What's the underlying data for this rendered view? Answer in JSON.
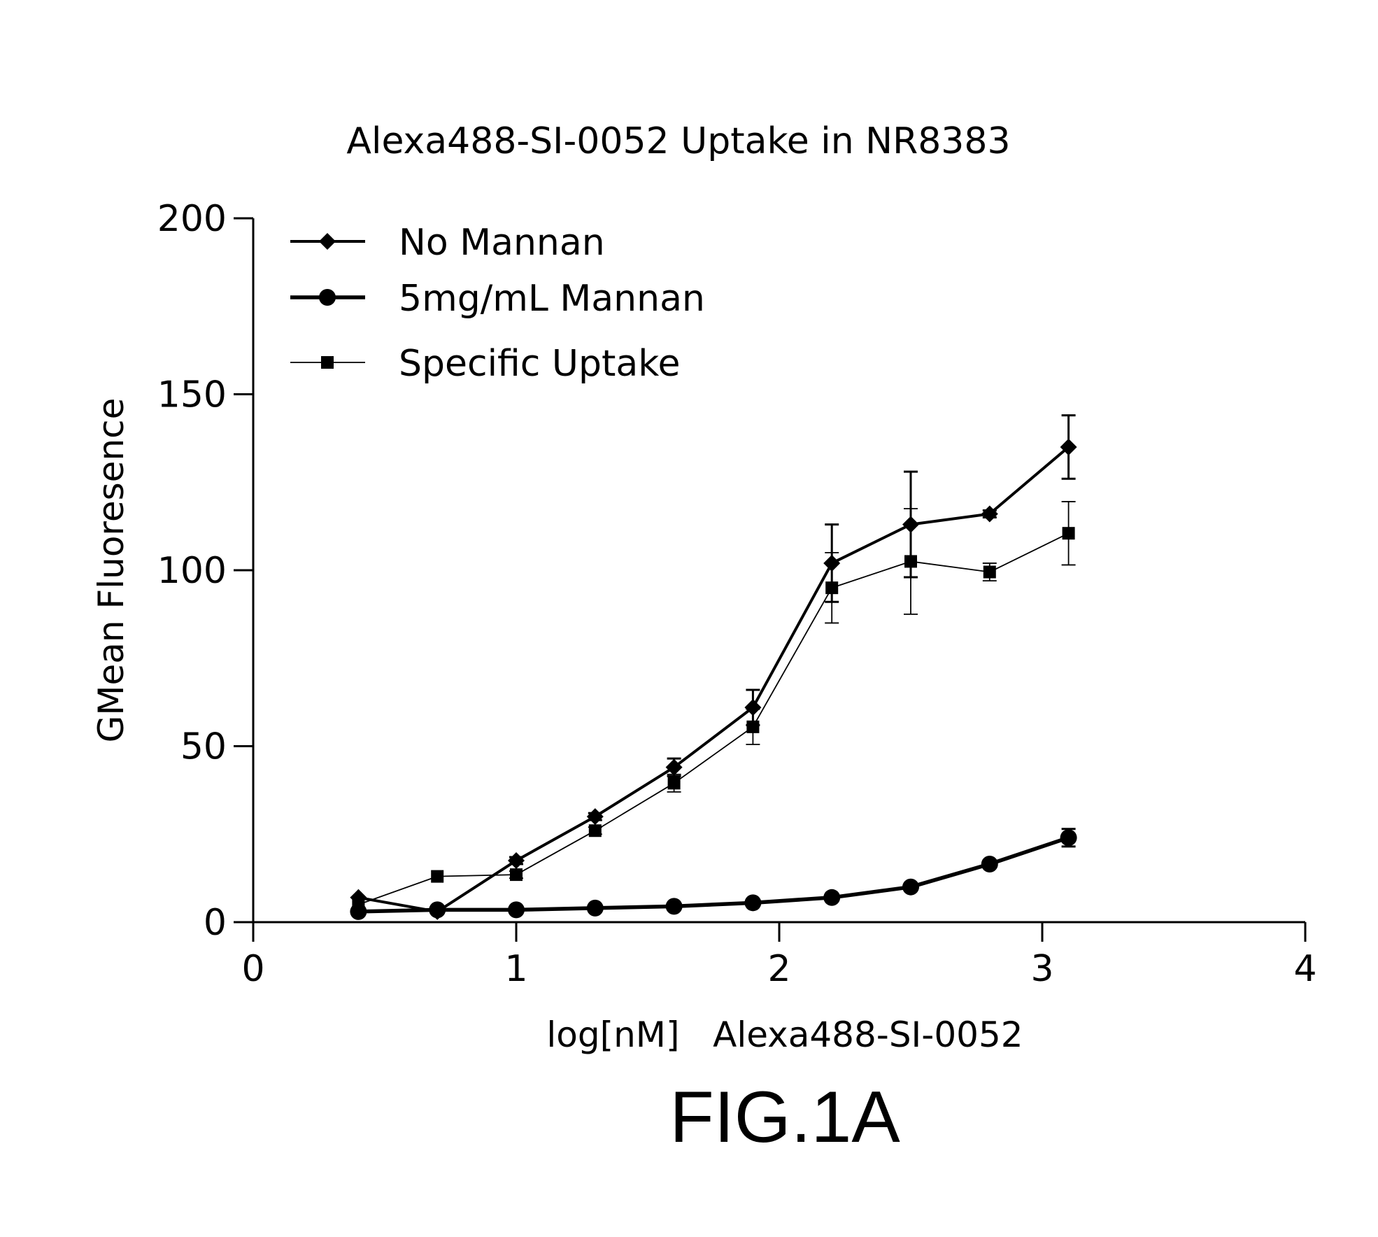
{
  "chart_data": {
    "type": "line",
    "title": "Alexa488-SI-0052 Uptake in NR8383",
    "xlabel": "log[nM]   Alexa488-SI-0052",
    "ylabel": "GMean Fluoresence",
    "xlim": [
      0,
      4
    ],
    "ylim": [
      0,
      200
    ],
    "xticks": [
      "0",
      "1",
      "2",
      "3",
      "4"
    ],
    "yticks": [
      "0",
      "50",
      "100",
      "150",
      "200"
    ],
    "grid": false,
    "legend_position": "top-left",
    "series": [
      {
        "name": "No Mannan",
        "marker": "diamond",
        "line": "thick",
        "x": [
          0.4,
          0.7,
          1.0,
          1.3,
          1.6,
          1.9,
          2.2,
          2.5,
          2.8,
          3.1
        ],
        "y": [
          7,
          3,
          17.5,
          30,
          44,
          61,
          102,
          113,
          116,
          135
        ],
        "err": [
          0,
          0,
          1,
          1,
          2.5,
          5,
          11,
          15,
          1,
          9
        ]
      },
      {
        "name": "5mg/mL Mannan",
        "marker": "circle",
        "line": "thickest",
        "x": [
          0.4,
          0.7,
          1.0,
          1.3,
          1.6,
          1.9,
          2.2,
          2.5,
          2.8,
          3.1
        ],
        "y": [
          3,
          3.5,
          3.5,
          4,
          4.5,
          5.5,
          7,
          10,
          16.5,
          24
        ],
        "err": [
          0,
          0,
          0.5,
          0.5,
          0.5,
          0.5,
          0.5,
          1,
          1,
          2.5
        ]
      },
      {
        "name": "Specific Uptake",
        "marker": "square",
        "line": "thin",
        "x": [
          0.4,
          0.7,
          1.0,
          1.3,
          1.6,
          1.9,
          2.2,
          2.5,
          2.8,
          3.1
        ],
        "y": [
          5,
          13,
          13.5,
          26,
          39.5,
          55.5,
          95,
          102.5,
          99.5,
          110.5
        ],
        "err": [
          0,
          0,
          1,
          1,
          2.5,
          5,
          10,
          15,
          2.5,
          9
        ]
      }
    ]
  },
  "figure_label": "FIG.1A"
}
